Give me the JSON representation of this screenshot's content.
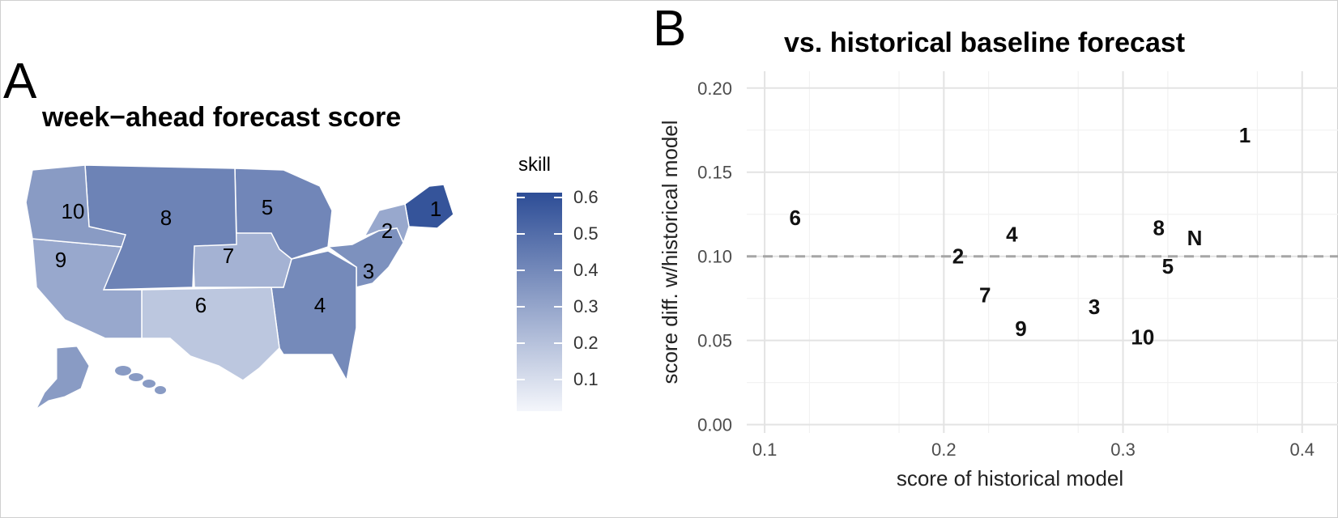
{
  "panel_a": {
    "letter": "A",
    "title": "week−ahead forecast score",
    "legend": {
      "title": "skill",
      "ticks": [
        "0.6",
        "0.5",
        "0.4",
        "0.3",
        "0.2",
        "0.1"
      ],
      "low_color": "#f4f6fb",
      "high_color": "#2d4d96"
    },
    "regions": [
      {
        "label": "1",
        "skill": 0.58
      },
      {
        "label": "2",
        "skill": 0.33
      },
      {
        "label": "3",
        "skill": 0.4
      },
      {
        "label": "4",
        "skill": 0.42
      },
      {
        "label": "5",
        "skill": 0.43
      },
      {
        "label": "6",
        "skill": 0.24
      },
      {
        "label": "7",
        "skill": 0.3
      },
      {
        "label": "8",
        "skill": 0.44
      },
      {
        "label": "9",
        "skill": 0.33
      },
      {
        "label": "10",
        "skill": 0.37
      }
    ]
  },
  "panel_b": {
    "letter": "B",
    "title": "vs. historical baseline forecast"
  },
  "chart_data": {
    "type": "scatter",
    "title": "vs. historical baseline forecast",
    "xlabel": "score of historical model",
    "ylabel": "score diff. w/historical model",
    "xlim": [
      0.09,
      0.42
    ],
    "ylim": [
      -0.005,
      0.21
    ],
    "x_ticks": [
      "0.1",
      "0.2",
      "0.3",
      "0.4"
    ],
    "y_ticks": [
      "0.00",
      "0.05",
      "0.10",
      "0.15",
      "0.20"
    ],
    "reference_line": {
      "y": 0.1,
      "style": "dashed"
    },
    "grid": true,
    "points": [
      {
        "label": "1",
        "x": 0.368,
        "y": 0.172
      },
      {
        "label": "2",
        "x": 0.208,
        "y": 0.1
      },
      {
        "label": "3",
        "x": 0.284,
        "y": 0.07
      },
      {
        "label": "4",
        "x": 0.238,
        "y": 0.113
      },
      {
        "label": "5",
        "x": 0.325,
        "y": 0.094
      },
      {
        "label": "6",
        "x": 0.117,
        "y": 0.123
      },
      {
        "label": "7",
        "x": 0.223,
        "y": 0.077
      },
      {
        "label": "8",
        "x": 0.32,
        "y": 0.117
      },
      {
        "label": "9",
        "x": 0.243,
        "y": 0.057
      },
      {
        "label": "10",
        "x": 0.311,
        "y": 0.052
      },
      {
        "label": "N",
        "x": 0.34,
        "y": 0.111
      }
    ]
  }
}
